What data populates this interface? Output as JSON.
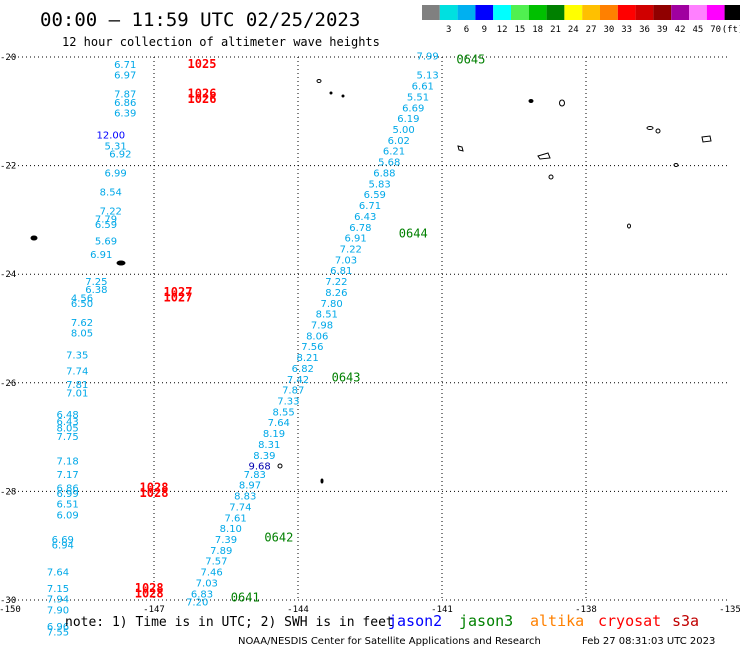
{
  "header": {
    "title": "00:00 – 11:59 UTC 02/25/2023",
    "subtitle": "12 hour collection of altimeter wave heights"
  },
  "legend": {
    "labels": [
      "3",
      "6",
      "9",
      "12",
      "15",
      "18",
      "21",
      "24",
      "27",
      "30",
      "33",
      "36",
      "39",
      "42",
      "45",
      "70"
    ],
    "unit": "(ft)",
    "colors": [
      "#808080",
      "#00e0e0",
      "#00b0f0",
      "#0000ff",
      "#00ffff",
      "#50f050",
      "#00c000",
      "#008000",
      "#ffff00",
      "#ffc000",
      "#ff8000",
      "#ff0000",
      "#d00000",
      "#900000",
      "#a000a0",
      "#ff80ff",
      "#ff00ff",
      "#000000"
    ]
  },
  "axes": {
    "lon_labels": [
      "-150",
      "-147",
      "-144",
      "-141",
      "-138",
      "-135"
    ],
    "lat_labels": [
      "-20",
      "-22",
      "-24",
      "-26",
      "-28",
      "-30"
    ]
  },
  "footer": {
    "note": "note: 1) Time is in UTC; 2) SWH is in feet",
    "center": "NOAA/NESDIS Center for Satellite Applications and Research",
    "timestamp": "Feb 27 08:31:03 UTC 2023"
  },
  "satellites": [
    {
      "name": "jason2",
      "color": "#0000ff"
    },
    {
      "name": "jason3",
      "color": "#008000"
    },
    {
      "name": "altika",
      "color": "#ff8000"
    },
    {
      "name": "cryosat",
      "color": "#ff0000"
    },
    {
      "name": "s3a",
      "color": "#c00000"
    }
  ],
  "track_times": [
    {
      "label": "0645",
      "lon": -140.7,
      "lat": -20.05
    },
    {
      "label": "0644",
      "lon": -141.9,
      "lat": -23.25
    },
    {
      "label": "0643",
      "lon": -143.3,
      "lat": -25.9
    },
    {
      "label": "0642",
      "lon": -144.7,
      "lat": -28.85
    },
    {
      "label": "0641",
      "lon": -145.4,
      "lat": -29.95
    }
  ],
  "group_times": [
    {
      "label": "1025",
      "lon": -146.0,
      "lat": -20.2
    },
    {
      "label": "1026",
      "lon": -146.0,
      "lat": -20.75
    },
    {
      "label": "1026",
      "lon": -146.0,
      "lat": -20.85
    },
    {
      "label": "1027",
      "lon": -146.5,
      "lat": -24.4
    },
    {
      "label": "1027",
      "lon": -146.5,
      "lat": -24.5
    },
    {
      "label": "1028",
      "lon": -147.0,
      "lat": -28.0
    },
    {
      "label": "1028",
      "lon": -147.0,
      "lat": -28.1
    },
    {
      "label": "1028",
      "lon": -147.1,
      "lat": -29.85
    },
    {
      "label": "1028",
      "lon": -147.1,
      "lat": -29.95
    }
  ],
  "swh_track": [
    {
      "v": "7.99",
      "lon": -141.3,
      "lat": -20.05
    },
    {
      "v": "5.13",
      "lon": -141.3,
      "lat": -20.4
    },
    {
      "v": "6.61",
      "lon": -141.4,
      "lat": -20.6
    },
    {
      "v": "5.51",
      "lon": -141.5,
      "lat": -20.8
    },
    {
      "v": "6.69",
      "lon": -141.6,
      "lat": -21.0
    },
    {
      "v": "6.19",
      "lon": -141.7,
      "lat": -21.2
    },
    {
      "v": "5.00",
      "lon": -141.8,
      "lat": -21.4
    },
    {
      "v": "6.02",
      "lon": -141.9,
      "lat": -21.6
    },
    {
      "v": "6.21",
      "lon": -142.0,
      "lat": -21.8
    },
    {
      "v": "5.68",
      "lon": -142.1,
      "lat": -22.0
    },
    {
      "v": "6.88",
      "lon": -142.2,
      "lat": -22.2
    },
    {
      "v": "5.83",
      "lon": -142.3,
      "lat": -22.4
    },
    {
      "v": "6.59",
      "lon": -142.4,
      "lat": -22.6
    },
    {
      "v": "6.71",
      "lon": -142.5,
      "lat": -22.8
    },
    {
      "v": "6.43",
      "lon": -142.6,
      "lat": -23.0
    },
    {
      "v": "6.78",
      "lon": -142.7,
      "lat": -23.2
    },
    {
      "v": "6.91",
      "lon": -142.8,
      "lat": -23.4
    },
    {
      "v": "7.22",
      "lon": -142.9,
      "lat": -23.6
    },
    {
      "v": "7.03",
      "lon": -143.0,
      "lat": -23.8
    },
    {
      "v": "6.81",
      "lon": -143.1,
      "lat": -24.0
    },
    {
      "v": "7.22",
      "lon": -143.2,
      "lat": -24.2
    },
    {
      "v": "8.26",
      "lon": -143.2,
      "lat": -24.4
    },
    {
      "v": "7.80",
      "lon": -143.3,
      "lat": -24.6
    },
    {
      "v": "8.51",
      "lon": -143.4,
      "lat": -24.8
    },
    {
      "v": "7.98",
      "lon": -143.5,
      "lat": -25.0
    },
    {
      "v": "8.06",
      "lon": -143.6,
      "lat": -25.2
    },
    {
      "v": "7.56",
      "lon": -143.7,
      "lat": -25.4
    },
    {
      "v": "8.21",
      "lon": -143.8,
      "lat": -25.6
    },
    {
      "v": "6.82",
      "lon": -143.9,
      "lat": -25.8
    },
    {
      "v": "7.42",
      "lon": -144.0,
      "lat": -26.0
    },
    {
      "v": "7.87",
      "lon": -144.1,
      "lat": -26.2
    },
    {
      "v": "7.33",
      "lon": -144.2,
      "lat": -26.4
    },
    {
      "v": "8.55",
      "lon": -144.3,
      "lat": -26.6
    },
    {
      "v": "7.64",
      "lon": -144.4,
      "lat": -26.8
    },
    {
      "v": "8.19",
      "lon": -144.5,
      "lat": -27.0
    },
    {
      "v": "8.31",
      "lon": -144.6,
      "lat": -27.2
    },
    {
      "v": "8.39",
      "lon": -144.7,
      "lat": -27.4
    },
    {
      "v": "9.68",
      "lon": -144.8,
      "lat": -27.6
    },
    {
      "v": "7.83",
      "lon": -144.9,
      "lat": -27.75
    },
    {
      "v": "8.97",
      "lon": -145.0,
      "lat": -27.95
    },
    {
      "v": "8.83",
      "lon": -145.1,
      "lat": -28.15
    },
    {
      "v": "7.74",
      "lon": -145.2,
      "lat": -28.35
    },
    {
      "v": "7.61",
      "lon": -145.3,
      "lat": -28.55
    },
    {
      "v": "8.10",
      "lon": -145.4,
      "lat": -28.75
    },
    {
      "v": "7.39",
      "lon": -145.5,
      "lat": -28.95
    },
    {
      "v": "7.89",
      "lon": -145.6,
      "lat": -29.15
    },
    {
      "v": "7.57",
      "lon": -145.7,
      "lat": -29.35
    },
    {
      "v": "7.46",
      "lon": -145.8,
      "lat": -29.55
    },
    {
      "v": "7.03",
      "lon": -145.9,
      "lat": -29.75
    },
    {
      "v": "6.83",
      "lon": -146.0,
      "lat": -29.95
    },
    {
      "v": "7.20",
      "lon": -146.1,
      "lat": -30.1
    }
  ],
  "swh_cluster": [
    {
      "v": "6.71",
      "lon": -147.6,
      "lat": -20.2
    },
    {
      "v": "6.97",
      "lon": -147.6,
      "lat": -20.4
    },
    {
      "v": "7.87",
      "lon": -147.6,
      "lat": -20.75
    },
    {
      "v": "6.86",
      "lon": -147.6,
      "lat": -20.9
    },
    {
      "v": "6.39",
      "lon": -147.6,
      "lat": -21.1
    },
    {
      "v": "12.00",
      "lon": -147.9,
      "lat": -21.5
    },
    {
      "v": "5.31",
      "lon": -147.8,
      "lat": -21.7
    },
    {
      "v": "6.92",
      "lon": -147.7,
      "lat": -21.85
    },
    {
      "v": "6.99",
      "lon": -147.8,
      "lat": -22.2
    },
    {
      "v": "8.54",
      "lon": -147.9,
      "lat": -22.55
    },
    {
      "v": "7.22",
      "lon": -147.9,
      "lat": -22.9
    },
    {
      "v": "7.79",
      "lon": -148.0,
      "lat": -23.05
    },
    {
      "v": "6.59",
      "lon": -148.0,
      "lat": -23.15
    },
    {
      "v": "5.69",
      "lon": -148.0,
      "lat": -23.45
    },
    {
      "v": "6.91",
      "lon": -148.1,
      "lat": -23.7
    },
    {
      "v": "7.25",
      "lon": -148.2,
      "lat": -24.2
    },
    {
      "v": "6.38",
      "lon": -148.2,
      "lat": -24.35
    },
    {
      "v": "4.56",
      "lon": -148.5,
      "lat": -24.5
    },
    {
      "v": "6.50",
      "lon": -148.5,
      "lat": -24.6
    },
    {
      "v": "7.62",
      "lon": -148.5,
      "lat": -24.95
    },
    {
      "v": "8.05",
      "lon": -148.5,
      "lat": -25.15
    },
    {
      "v": "7.35",
      "lon": -148.6,
      "lat": -25.55
    },
    {
      "v": "7.74",
      "lon": -148.6,
      "lat": -25.85
    },
    {
      "v": "7.81",
      "lon": -148.6,
      "lat": -26.1
    },
    {
      "v": "7.01",
      "lon": -148.6,
      "lat": -26.25
    },
    {
      "v": "6.48",
      "lon": -148.8,
      "lat": -26.65
    },
    {
      "v": "6.43",
      "lon": -148.8,
      "lat": -26.78
    },
    {
      "v": "8.05",
      "lon": -148.8,
      "lat": -26.9
    },
    {
      "v": "7.75",
      "lon": -148.8,
      "lat": -27.05
    },
    {
      "v": "7.18",
      "lon": -148.8,
      "lat": -27.5
    },
    {
      "v": "7.17",
      "lon": -148.8,
      "lat": -27.75
    },
    {
      "v": "6.86",
      "lon": -148.8,
      "lat": -28.0
    },
    {
      "v": "6.99",
      "lon": -148.8,
      "lat": -28.1
    },
    {
      "v": "6.51",
      "lon": -148.8,
      "lat": -28.3
    },
    {
      "v": "6.09",
      "lon": -148.8,
      "lat": -28.5
    },
    {
      "v": "6.69",
      "lon": -148.9,
      "lat": -28.95
    },
    {
      "v": "6.94",
      "lon": -148.9,
      "lat": -29.05
    },
    {
      "v": "7.64",
      "lon": -149.0,
      "lat": -29.55
    },
    {
      "v": "7.15",
      "lon": -149.0,
      "lat": -29.85
    },
    {
      "v": "7.94",
      "lon": -149.0,
      "lat": -30.05
    },
    {
      "v": "7.90",
      "lon": -149.0,
      "lat": -30.25
    },
    {
      "v": "6.96",
      "lon": -149.0,
      "lat": -30.55
    },
    {
      "v": "7.55",
      "lon": -149.0,
      "lat": -30.65
    }
  ]
}
